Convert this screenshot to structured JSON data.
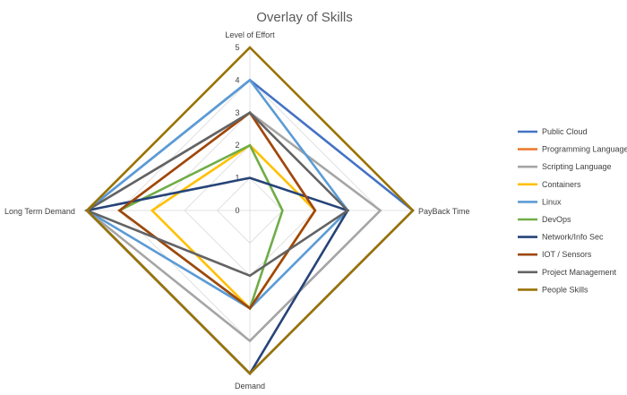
{
  "chart_data": {
    "type": "radar",
    "title": "Overlay of Skills",
    "axes": [
      "Level of Effort",
      "PayBack Time",
      "Demand",
      "Long Term Demand"
    ],
    "rlim": [
      0,
      5
    ],
    "ticks": [
      0,
      1,
      2,
      3,
      4,
      5
    ],
    "grid": true,
    "legend_position": "right",
    "series": [
      {
        "name": "Public Cloud",
        "color": "#4472c4",
        "values": [
          4,
          5,
          5,
          5
        ]
      },
      {
        "name": "Programming Language",
        "color": "#ed7d31",
        "values": [
          3,
          2,
          3,
          4
        ]
      },
      {
        "name": "Scripting Language",
        "color": "#a5a5a5",
        "values": [
          3,
          4,
          4,
          5
        ]
      },
      {
        "name": "Containers",
        "color": "#ffc000",
        "values": [
          2,
          2,
          3,
          3
        ]
      },
      {
        "name": "Linux",
        "color": "#5b9bd5",
        "values": [
          4,
          3,
          3,
          5
        ]
      },
      {
        "name": "DevOps",
        "color": "#70ad47",
        "values": [
          2,
          1,
          3,
          4
        ]
      },
      {
        "name": "Network/Info Sec",
        "color": "#264478",
        "values": [
          1,
          3,
          5,
          5
        ]
      },
      {
        "name": "IOT / Sensors",
        "color": "#9e480e",
        "values": [
          3,
          2,
          3,
          4
        ]
      },
      {
        "name": "Project Management",
        "color": "#636363",
        "values": [
          3,
          3,
          2,
          5
        ]
      },
      {
        "name": "People Skills",
        "color": "#997300",
        "values": [
          5,
          5,
          5,
          5
        ]
      }
    ]
  }
}
